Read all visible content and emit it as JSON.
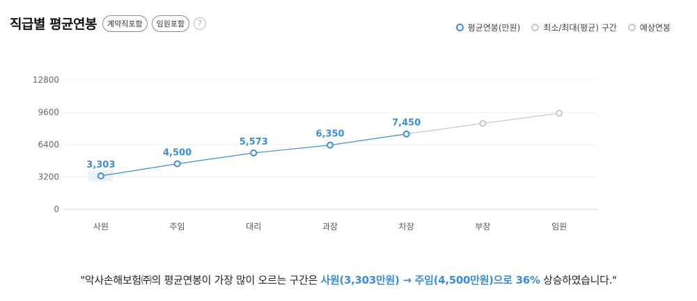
{
  "header": {
    "title": "직급별 평균연봉",
    "chips": [
      "계약직포함",
      "임원포함"
    ],
    "help": "?"
  },
  "legend": [
    {
      "label": "평균연봉(만원)",
      "color": "#3a8dde"
    },
    {
      "label": "최소/최대(평균) 구간",
      "color": "#c6c6c6"
    },
    {
      "label": "예상연봉",
      "color": "#c6c6c6"
    }
  ],
  "chart_data": {
    "type": "line",
    "categories": [
      "사원",
      "주임",
      "대리",
      "과장",
      "차장",
      "부장",
      "임원"
    ],
    "series": [
      {
        "name": "평균연봉(만원)",
        "values": [
          3303,
          4500,
          5573,
          6350,
          7450,
          null,
          null
        ],
        "color": "#3a8dde"
      },
      {
        "name": "예상연봉",
        "values": [
          null,
          null,
          null,
          null,
          7450,
          8500,
          9500
        ],
        "color": "#c6c6c6"
      }
    ],
    "data_labels": [
      "3,303",
      "4,500",
      "5,573",
      "6,350",
      "7,450"
    ],
    "yticks": [
      0,
      3200,
      6400,
      9600,
      12800
    ],
    "ylim": [
      0,
      12800
    ],
    "grid": true,
    "legend_position": "top-right"
  },
  "caption": {
    "prefix": "\"악사손해보험㈜의 평균연봉이 가장 많이 오르는 구간은 ",
    "highlight1": "사원(3,303만원) → 주임(4,500만원)으로 36%",
    "suffix": " 상승하였습니다.\""
  }
}
